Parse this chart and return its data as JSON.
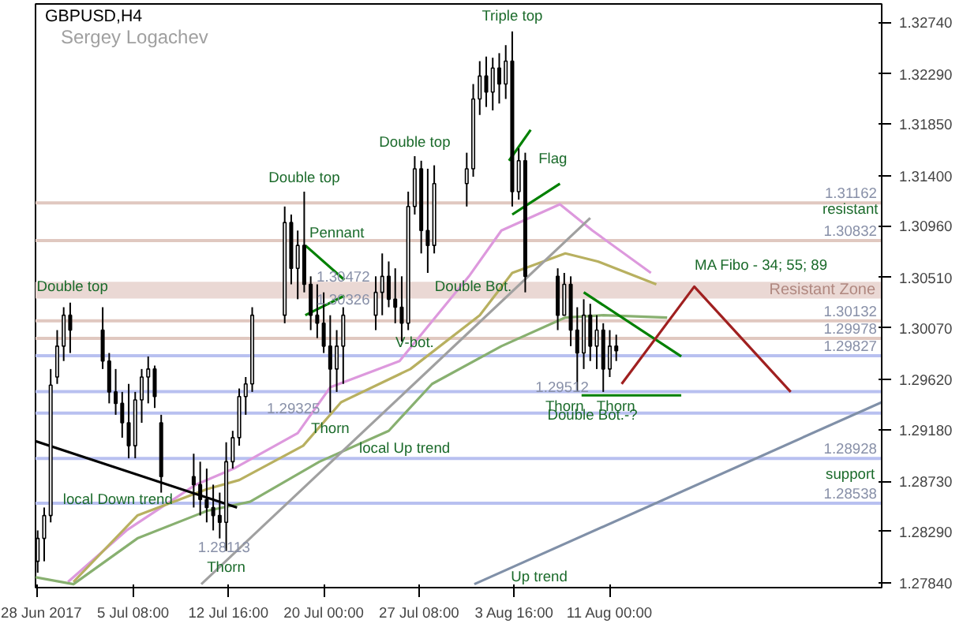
{
  "chart_data": {
    "type": "candlestick",
    "title": "GBPUSD,H4",
    "subtitle": "Sergey Logachev",
    "color": "#000000",
    "x": [
      "2017-06-28T00:00",
      "2017-06-28T12:00",
      "2017-06-29T00:00",
      "2017-06-29T12:00",
      "2017-06-30T00:00",
      "2017-06-30T12:00",
      "2017-07-03T00:00",
      "2017-07-03T12:00",
      "2017-07-04T00:00",
      "2017-07-04T12:00",
      "2017-07-05T00:00",
      "2017-07-05T12:00",
      "2017-07-06T00:00",
      "2017-07-06T12:00",
      "2017-07-07T00:00",
      "2017-07-07T12:00",
      "2017-07-10T00:00",
      "2017-07-10T12:00",
      "2017-07-11T00:00",
      "2017-07-11T12:00",
      "2017-07-12T00:00",
      "2017-07-12T12:00",
      "2017-07-13T00:00",
      "2017-07-13T12:00",
      "2017-07-14T00:00",
      "2017-07-14T12:00",
      "2017-07-17T00:00",
      "2017-07-17T12:00",
      "2017-07-18T00:00",
      "2017-07-18T12:00",
      "2017-07-19T00:00",
      "2017-07-19T12:00",
      "2017-07-20T00:00",
      "2017-07-20T12:00",
      "2017-07-21T00:00",
      "2017-07-21T12:00",
      "2017-07-24T00:00",
      "2017-07-24T12:00",
      "2017-07-25T00:00",
      "2017-07-25T12:00",
      "2017-07-26T00:00",
      "2017-07-26T12:00",
      "2017-07-27T00:00",
      "2017-07-27T12:00",
      "2017-07-28T00:00",
      "2017-07-28T12:00",
      "2017-07-31T00:00",
      "2017-07-31T12:00",
      "2017-08-01T00:00",
      "2017-08-01T12:00",
      "2017-08-02T00:00",
      "2017-08-02T12:00",
      "2017-08-03T00:00",
      "2017-08-03T12:00",
      "2017-08-04T00:00",
      "2017-08-04T12:00",
      "2017-08-07T00:00",
      "2017-08-07T12:00",
      "2017-08-08T00:00",
      "2017-08-08T12:00",
      "2017-08-09T00:00",
      "2017-08-09T12:00",
      "2017-08-10T00:00",
      "2017-08-10T12:00",
      "2017-08-11T00:00",
      "2017-08-11T12:00"
    ],
    "ohlc": [
      [
        1.2803,
        1.283,
        1.2793,
        1.2823
      ],
      [
        1.2823,
        1.285,
        1.2803,
        1.2843
      ],
      [
        1.2843,
        1.2971,
        1.2837,
        1.2957
      ],
      [
        1.2964,
        1.3005,
        1.2958,
        1.2991
      ],
      [
        1.2991,
        1.3025,
        1.2978,
        1.3018
      ],
      [
        1.3018,
        1.3029,
        1.2985,
        1.3005
      ],
      [
        1.3005,
        1.3025,
        1.2971,
        1.2978
      ],
      [
        1.2978,
        1.2985,
        1.2941,
        1.2951
      ],
      [
        1.2951,
        1.2971,
        1.2931,
        1.2941
      ],
      [
        1.2941,
        1.2951,
        1.2911,
        1.2924
      ],
      [
        1.2924,
        1.2958,
        1.2893,
        1.2904
      ],
      [
        1.2904,
        1.2951,
        1.2893,
        1.2944
      ],
      [
        1.2944,
        1.2971,
        1.2924,
        1.2964
      ],
      [
        1.2964,
        1.2982,
        1.2941,
        1.2971
      ],
      [
        1.2971,
        1.2974,
        1.2937,
        1.2947
      ],
      [
        1.2924,
        1.2931,
        1.2863,
        1.2877
      ],
      [
        1.2877,
        1.2897,
        1.285,
        1.287
      ],
      [
        1.287,
        1.289,
        1.2843,
        1.2857
      ],
      [
        1.2857,
        1.2884,
        1.2837,
        1.285
      ],
      [
        1.285,
        1.287,
        1.283,
        1.2843
      ],
      [
        1.2843,
        1.2863,
        1.2823,
        1.2837
      ],
      [
        1.2837,
        1.2907,
        1.2812,
        1.289
      ],
      [
        1.289,
        1.2917,
        1.2884,
        1.2911
      ],
      [
        1.2911,
        1.2954,
        1.2904,
        1.2947
      ],
      [
        1.2947,
        1.2964,
        1.2931,
        1.2958
      ],
      [
        1.2958,
        1.3025,
        1.2951,
        1.3018
      ],
      [
        1.3018,
        1.3113,
        1.3011,
        1.3099
      ],
      [
        1.3099,
        1.3106,
        1.3045,
        1.3059
      ],
      [
        1.3059,
        1.3092,
        1.3032,
        1.3079
      ],
      [
        1.3079,
        1.3126,
        1.3038,
        1.3045
      ],
      [
        1.3045,
        1.3052,
        1.3005,
        1.3018
      ],
      [
        1.3018,
        1.3045,
        1.2998,
        1.3011
      ],
      [
        1.3011,
        1.3038,
        1.2985,
        1.2991
      ],
      [
        1.2991,
        1.3018,
        1.2933,
        1.2971
      ],
      [
        1.2971,
        1.3005,
        1.2951,
        1.2991
      ],
      [
        1.2991,
        1.3025,
        1.2958,
        1.3018
      ],
      [
        1.3018,
        1.3052,
        1.3005,
        1.3038
      ],
      [
        1.3038,
        1.3072,
        1.3018,
        1.3052
      ],
      [
        1.3052,
        1.3065,
        1.3025,
        1.3032
      ],
      [
        1.3032,
        1.3059,
        1.3011,
        1.3025
      ],
      [
        1.3025,
        1.3052,
        1.2995,
        1.3011
      ],
      [
        1.3011,
        1.3126,
        1.3005,
        1.3113
      ],
      [
        1.3113,
        1.3157,
        1.3106,
        1.3146
      ],
      [
        1.3146,
        1.3153,
        1.3072,
        1.3092
      ],
      [
        1.3092,
        1.3146,
        1.3055,
        1.3079
      ],
      [
        1.3079,
        1.3149,
        1.3072,
        1.3133
      ],
      [
        1.3133,
        1.316,
        1.3113,
        1.3146
      ],
      [
        1.3146,
        1.322,
        1.3139,
        1.3207
      ],
      [
        1.3207,
        1.324,
        1.3193,
        1.3227
      ],
      [
        1.3227,
        1.3244,
        1.32,
        1.3213
      ],
      [
        1.3213,
        1.3243,
        1.3197,
        1.3234
      ],
      [
        1.3234,
        1.3247,
        1.3203,
        1.322
      ],
      [
        1.322,
        1.3254,
        1.3207,
        1.324
      ],
      [
        1.324,
        1.3266,
        1.3113,
        1.3126
      ],
      [
        1.3126,
        1.3164,
        1.3119,
        1.3153
      ],
      [
        1.3153,
        1.316,
        1.3038,
        1.3052
      ],
      [
        1.3052,
        1.3059,
        1.3005,
        1.3018
      ],
      [
        1.3018,
        1.3055,
        1.3018,
        1.3045
      ],
      [
        1.3045,
        1.3052,
        1.2991,
        1.3005
      ],
      [
        1.3005,
        1.3025,
        1.2951,
        1.2985
      ],
      [
        1.2985,
        1.3032,
        1.2971,
        1.3018
      ],
      [
        1.3018,
        1.3028,
        1.2978,
        1.2991
      ],
      [
        1.2991,
        1.3018,
        1.2971,
        1.3005
      ],
      [
        1.3005,
        1.3011,
        1.2951,
        1.2971
      ],
      [
        1.2971,
        1.3005,
        1.2964,
        1.2991
      ],
      [
        1.2991,
        1.3001,
        1.2978,
        1.2987
      ]
    ],
    "series": [
      {
        "type": "line",
        "color": "#dd99dd",
        "x": [
          "2017-06-30T08:00",
          "2017-07-04T20:00",
          "2017-07-10T04:00",
          "2017-07-13T02:00",
          "2017-07-18T00:00",
          "2017-07-20T12:00",
          "2017-07-25T20:00",
          "2017-07-31T04:00",
          "2017-08-02T16:00",
          "2017-08-07T04:00",
          "2017-08-09T16:00",
          "2017-08-14T04:00"
        ],
        "values": [
          1.2785,
          1.283,
          1.287,
          1.2884,
          1.2915,
          1.2955,
          1.2978,
          1.3052,
          1.3092,
          1.3115,
          1.3092,
          1.3055
        ]
      },
      {
        "type": "line",
        "color": "#b8b060",
        "x": [
          "2017-06-30T18:00",
          "2017-07-05T16:00",
          "2017-07-11T00:00",
          "2017-07-13T12:00",
          "2017-07-18T10:00",
          "2017-07-21T08:00",
          "2017-07-26T16:00",
          "2017-08-01T00:00",
          "2017-08-03T12:00",
          "2017-08-07T14:00",
          "2017-08-10T02:00",
          "2017-08-14T14:00"
        ],
        "values": [
          1.2785,
          1.2843,
          1.2866,
          1.2874,
          1.2904,
          1.2942,
          1.2971,
          1.3018,
          1.3055,
          1.3072,
          1.3065,
          1.3045
        ]
      },
      {
        "type": "line",
        "color": "#88b070",
        "x": [
          "2017-06-27T20:00",
          "2017-06-30T18:00",
          "2017-07-05T16:00",
          "2017-07-11T00:00",
          "2017-07-14T08:00",
          "2017-07-19T16:00",
          "2017-07-25T00:00",
          "2017-07-28T08:00",
          "2017-08-02T16:00",
          "2017-08-07T14:00",
          "2017-08-10T12:00",
          "2017-08-15T10:00"
        ],
        "values": [
          1.2789,
          1.2783,
          1.2823,
          1.2847,
          1.2855,
          1.289,
          1.2917,
          1.2958,
          1.2991,
          1.3016,
          1.3018,
          1.3016
        ]
      },
      {
        "type": "line",
        "color": "#000000",
        "x": [
          "2017-06-27T20:00",
          "2017-07-13T08:00"
        ],
        "values": [
          1.2908,
          1.285
        ]
      },
      {
        "type": "line",
        "color": "#a0a0a0",
        "x": [
          "2017-07-10T14:00",
          "2017-08-09T12:00"
        ],
        "values": [
          1.2783,
          1.3103
        ]
      },
      {
        "type": "line",
        "color": "#8090a8",
        "x": [
          "2017-07-31T14:00",
          "2017-08-31T22:00"
        ],
        "values": [
          1.2783,
          1.2942
        ]
      },
      {
        "type": "line",
        "color": "#008000",
        "x": [
          "2017-07-18T14:00",
          "2017-07-21T14:00"
        ],
        "values": [
          1.3079,
          1.3049
        ]
      },
      {
        "type": "line",
        "color": "#008000",
        "x": [
          "2017-07-18T14:00",
          "2017-07-21T14:00"
        ],
        "values": [
          1.3018,
          1.3035
        ]
      },
      {
        "type": "line",
        "color": "#008000",
        "x": [
          "2017-08-03T06:00",
          "2017-08-04T22:00"
        ],
        "values": [
          1.3153,
          1.318
        ]
      },
      {
        "type": "line",
        "color": "#008000",
        "x": [
          "2017-08-03T12:00",
          "2017-08-07T04:00"
        ],
        "values": [
          1.3106,
          1.3133
        ]
      },
      {
        "type": "line",
        "color": "#008000",
        "x": [
          "2017-08-09T00:00",
          "2017-08-16T12:00"
        ],
        "values": [
          1.3038,
          1.2982
        ]
      },
      {
        "type": "line",
        "color": "#008000",
        "x": [
          "2017-08-08T20:00",
          "2017-08-16T12:00"
        ],
        "values": [
          1.2948,
          1.2948
        ]
      },
      {
        "type": "line",
        "color": "#a02020",
        "x": [
          "2017-08-11T22:00",
          "2017-08-17T12:00",
          "2017-08-24T22:00"
        ],
        "values": [
          1.2958,
          1.3043,
          1.2951
        ]
      }
    ],
    "xlim": [
      "2017-06-27T20:00",
      "2017-08-31T22:00"
    ],
    "ylim": [
      1.278,
      1.329
    ],
    "xticks": [
      {
        "value": "2017-06-28T00:00",
        "label": "28 Jun 2017"
      },
      {
        "value": "2017-07-05T08:00",
        "label": "5 Jul 08:00"
      },
      {
        "value": "2017-07-12T16:00",
        "label": "12 Jul 16:00"
      },
      {
        "value": "2017-07-20T00:00",
        "label": "20 Jul 00:00"
      },
      {
        "value": "2017-07-27T08:00",
        "label": "27 Jul 08:00"
      },
      {
        "value": "2017-08-03T16:00",
        "label": "3 Aug 16:00"
      },
      {
        "value": "2017-08-11T00:00",
        "label": "11 Aug 00:00"
      }
    ],
    "yticks": [
      {
        "value": 1.2784,
        "label": "1.27840"
      },
      {
        "value": 1.2829,
        "label": "1.28290"
      },
      {
        "value": 1.2873,
        "label": "1.28730"
      },
      {
        "value": 1.2918,
        "label": "1.29180"
      },
      {
        "value": 1.2962,
        "label": "1.29620"
      },
      {
        "value": 1.3007,
        "label": "1.30070"
      },
      {
        "value": 1.3051,
        "label": "1.30510"
      },
      {
        "value": 1.3096,
        "label": "1.30960"
      },
      {
        "value": 1.314,
        "label": "1.31400"
      },
      {
        "value": 1.3185,
        "label": "1.31850"
      },
      {
        "value": 1.3229,
        "label": "1.32290"
      },
      {
        "value": 1.3274,
        "label": "1.32740"
      }
    ],
    "ref_lines": [
      {
        "axis": "y",
        "value": 1.31162,
        "label": "1.31162",
        "color": "#e0c8c0"
      },
      {
        "axis": "y",
        "value": 1.30832,
        "label": "1.30832",
        "color": "#e0c8c0"
      },
      {
        "axis": "y",
        "value": 1.30132,
        "label": "1.30132",
        "color": "#e0c8c0"
      },
      {
        "axis": "y",
        "value": 1.29978,
        "label": "1.29978",
        "color": "#e0c8c0"
      },
      {
        "axis": "y",
        "value": 1.29827,
        "label": "1.29827",
        "color": "#b8c0f0"
      },
      {
        "axis": "y",
        "value": 1.29512,
        "label": null,
        "color": "#b8c0f0"
      },
      {
        "axis": "y",
        "value": 1.29325,
        "label": null,
        "color": "#b8c0f0"
      },
      {
        "axis": "y",
        "value": 1.28928,
        "label": "1.28928",
        "color": "#b8c0f0"
      },
      {
        "axis": "y",
        "value": 1.28538,
        "label": "1.28538",
        "color": "#b8c0f0"
      }
    ],
    "bands": [
      {
        "axis": "y",
        "from": 1.30326,
        "to": 1.30472,
        "label": "Resistant Zone",
        "color": "#ead8d4"
      }
    ],
    "annotations": [
      {
        "text": "Double top",
        "x": "2017-06-30T16:00",
        "y": 1.3043
      },
      {
        "text": "1.30472",
        "x": "2017-07-21T12:00",
        "y": 1.3052
      },
      {
        "text": "1.30326",
        "x": "2017-07-21T12:00",
        "y": 1.3032
      },
      {
        "text": "Double top",
        "x": "2017-07-18T12:00",
        "y": 1.3126
      },
      {
        "text": "Pennant",
        "x": "2017-07-18T14:00",
        "y": 1.3079
      },
      {
        "text": "Double top",
        "x": "2017-07-27T00:00",
        "y": 1.3157
      },
      {
        "text": "Triple top",
        "x": "2017-08-03T12:00",
        "y": 1.3266
      },
      {
        "text": "Flag",
        "x": "2017-08-04T22:00",
        "y": 1.318
      },
      {
        "text": "Double Bot.",
        "x": "2017-07-31T12:00",
        "y": 1.3043
      },
      {
        "text": "V-bot.",
        "x": "2017-07-27T00:00",
        "y": 1.2994
      },
      {
        "text": "1.29325",
        "x": "2017-07-17T16:00",
        "y": 1.2937
      },
      {
        "text": "Thorn",
        "x": "2017-07-20T12:00",
        "y": 1.2933
      },
      {
        "text": "local  Up trend",
        "x": "2017-07-22T00:00",
        "y": 1.2905
      },
      {
        "text": "local Down trend",
        "x": "2017-07-04T04:00",
        "y": 1.2857
      },
      {
        "text": "1.28113",
        "x": "2017-07-12T08:00",
        "y": 1.2816
      },
      {
        "text": "Thorn",
        "x": "2017-07-12T12:00",
        "y": 1.2812
      },
      {
        "text": "1.29512",
        "x": "2017-08-07T08:00",
        "y": 1.2956
      },
      {
        "text": "Thorn",
        "x": "2017-08-08T12:00",
        "y": 1.2951
      },
      {
        "text": "Thorn",
        "x": "2017-08-10T12:00",
        "y": 1.2951
      },
      {
        "text": "Double Bot.-?",
        "x": "2017-08-09T16:00",
        "y": 1.2931
      },
      {
        "text": "Up trend",
        "x": "2017-08-08T00:00",
        "y": 1.282
      },
      {
        "text": "MA Fibo - 34; 55; 89",
        "x": "2017-08-14T04:00",
        "y": 1.3055
      },
      {
        "text": "resistant",
        "x": "2017-08-29T12:00",
        "y": 1.30832
      },
      {
        "text": "support",
        "x": "2017-08-29T12:00",
        "y": 1.28928
      }
    ],
    "grid": false,
    "marker": "none",
    "line_style": "solid"
  }
}
